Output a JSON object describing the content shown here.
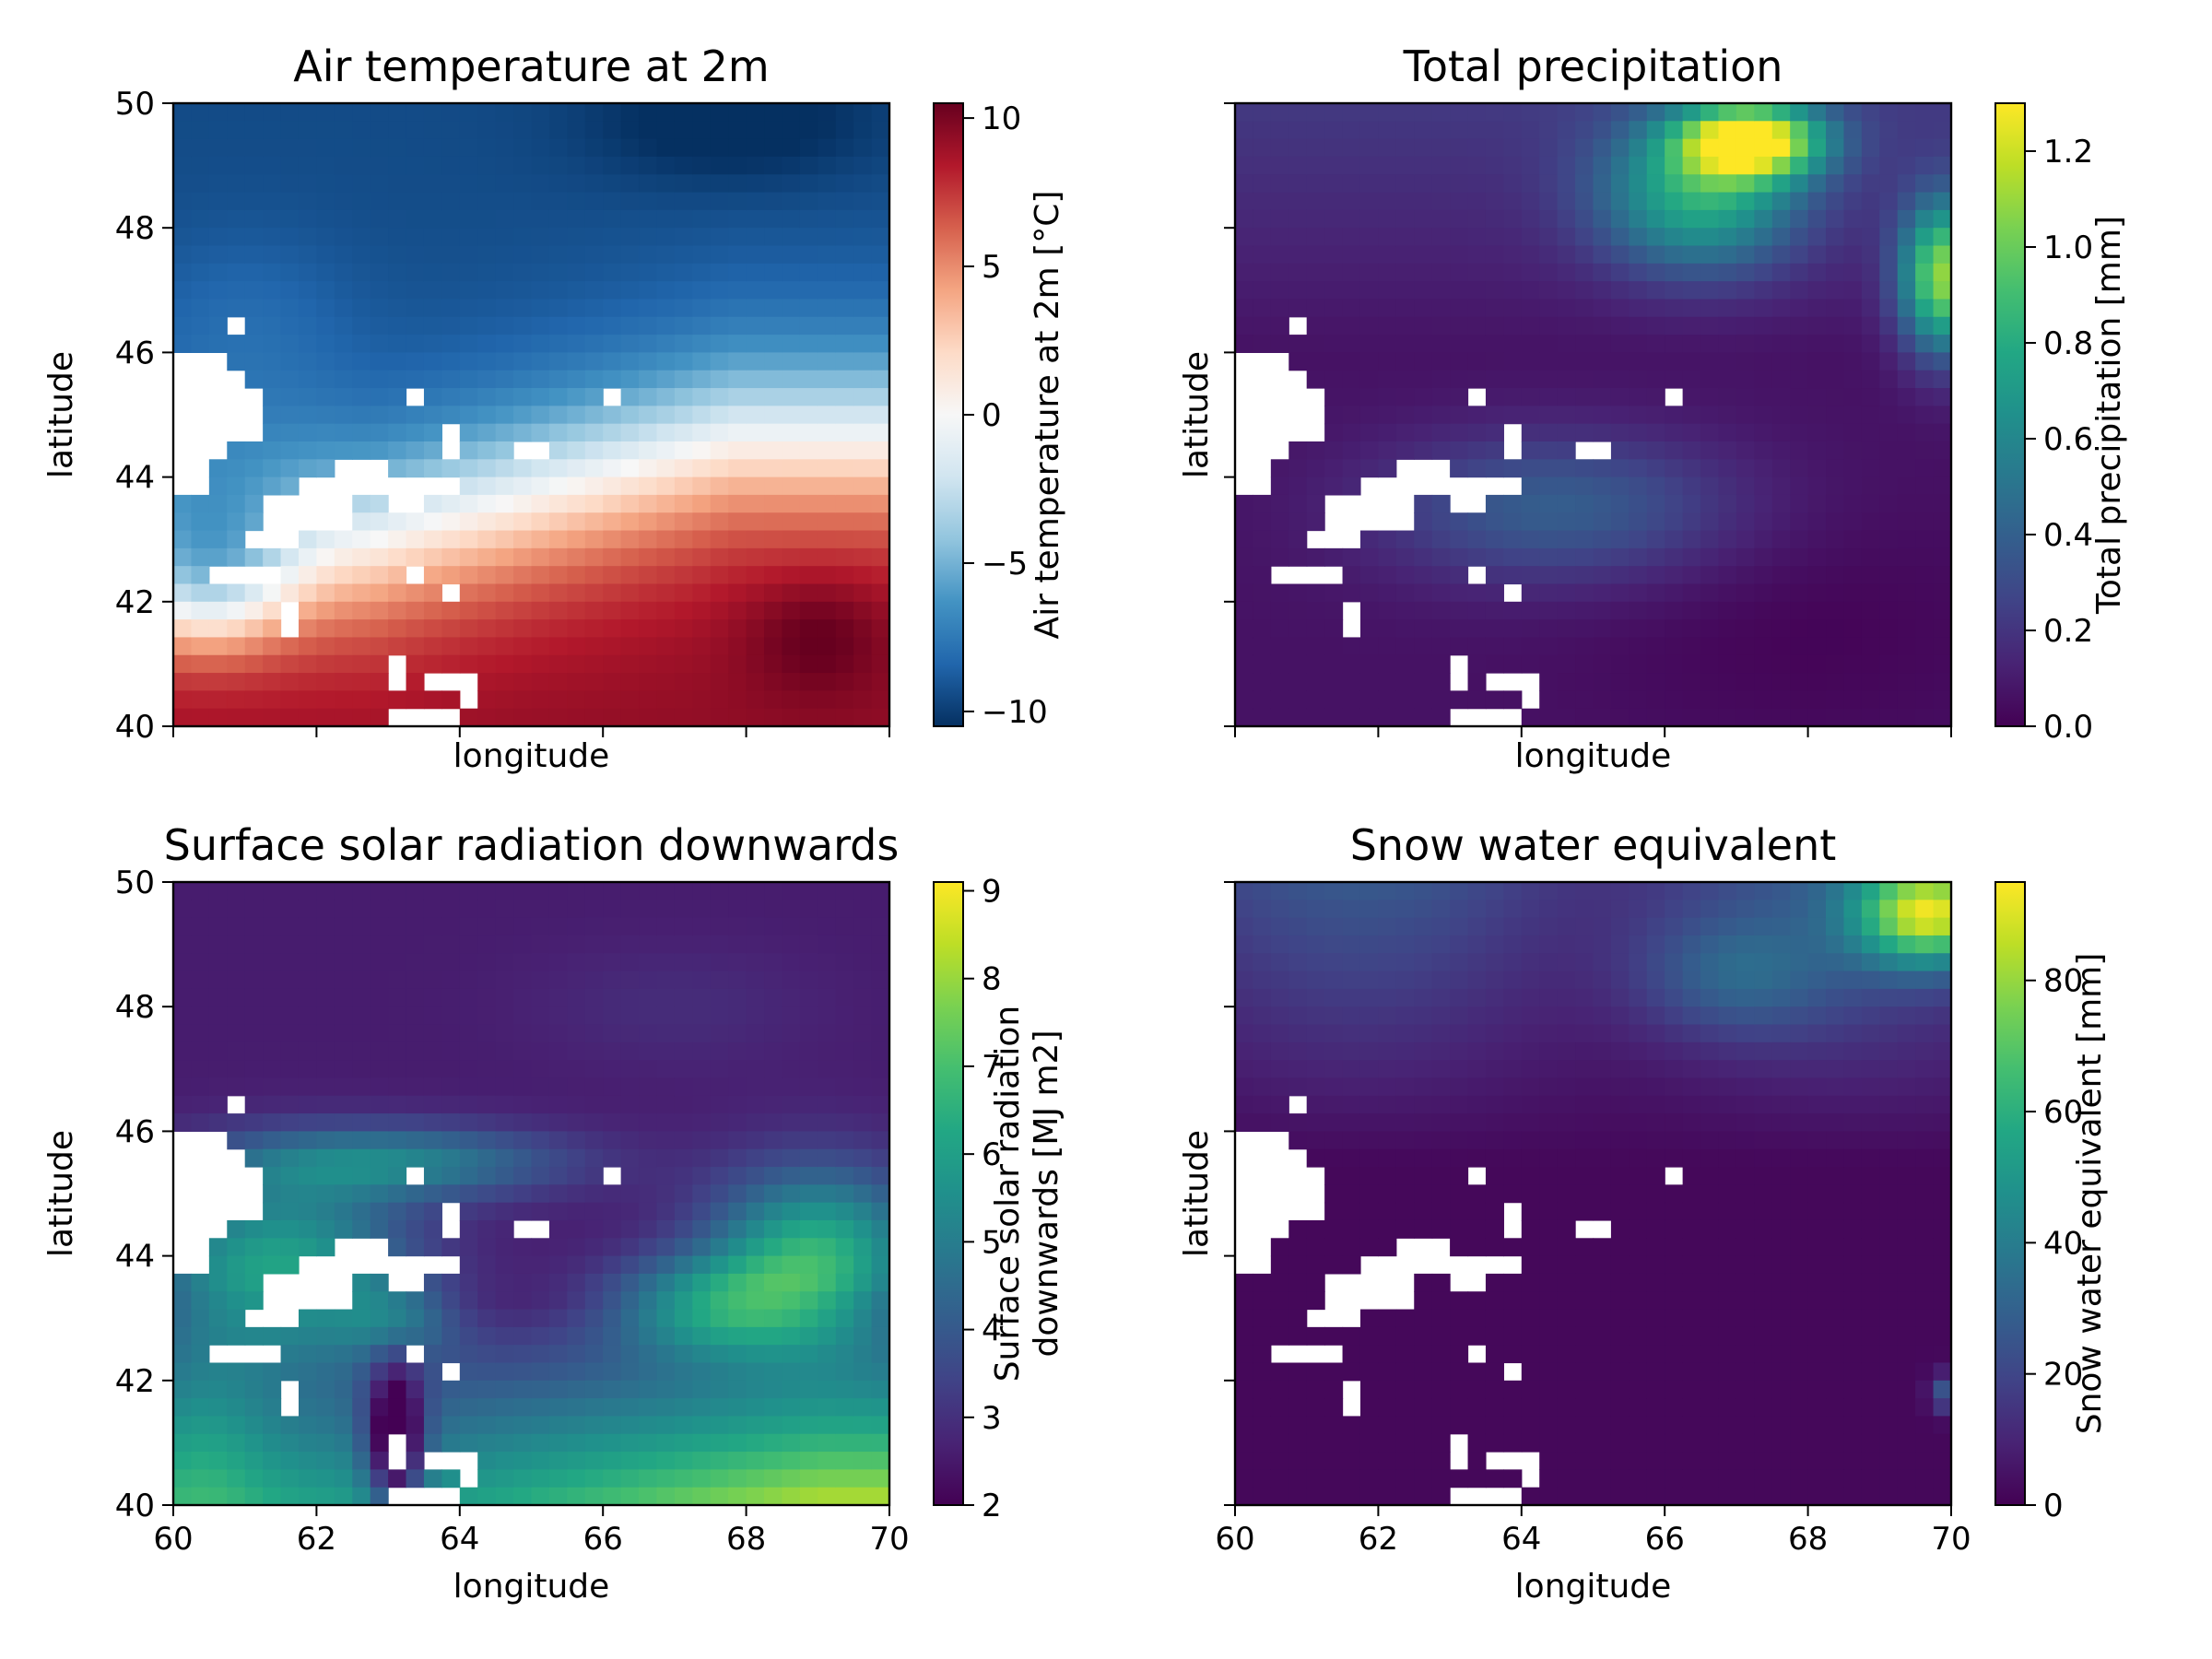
{
  "chart_data": [
    {
      "type": "heatmap",
      "title": "Air temperature at 2m",
      "xlabel": "longitude",
      "ylabel": "latitude",
      "xlim": [
        60,
        70
      ],
      "ylim": [
        40,
        50
      ],
      "xticks": [
        "60",
        "62",
        "64",
        "66",
        "68",
        "70"
      ],
      "xtick_labels_visible": false,
      "yticks": [
        "40",
        "42",
        "44",
        "46",
        "48",
        "50"
      ],
      "ytick_labels_visible": true,
      "grid": false,
      "colorbar": {
        "label": "Air temperature at 2m [°C]",
        "cmap": "RdBu_r",
        "range": [
          -10.5,
          10.5
        ],
        "ticks": [
          -10,
          -5,
          0,
          5,
          10
        ],
        "tick_labels": [
          "−10",
          "−5",
          "0",
          "5",
          "10"
        ]
      }
    },
    {
      "type": "heatmap",
      "title": "Total precipitation",
      "xlabel": "longitude",
      "ylabel": "latitude",
      "xlim": [
        60,
        70
      ],
      "ylim": [
        40,
        50
      ],
      "xticks": [
        "60",
        "62",
        "64",
        "66",
        "68",
        "70"
      ],
      "xtick_labels_visible": false,
      "yticks": [
        "40",
        "42",
        "44",
        "46",
        "48",
        "50"
      ],
      "ytick_labels_visible": false,
      "grid": false,
      "colorbar": {
        "label": "Total precipitation [mm]",
        "cmap": "viridis",
        "range": [
          0,
          1.3
        ],
        "ticks": [
          0,
          0.2,
          0.4,
          0.6,
          0.8,
          1.0,
          1.2
        ],
        "tick_labels": [
          "0.0",
          "0.2",
          "0.4",
          "0.6",
          "0.8",
          "1.0",
          "1.2"
        ]
      }
    },
    {
      "type": "heatmap",
      "title": "Surface solar radiation downwards",
      "xlabel": "longitude",
      "ylabel": "latitude",
      "xlim": [
        60,
        70
      ],
      "ylim": [
        40,
        50
      ],
      "xticks": [
        "60",
        "62",
        "64",
        "66",
        "68",
        "70"
      ],
      "xtick_labels_visible": true,
      "yticks": [
        "40",
        "42",
        "44",
        "46",
        "48",
        "50"
      ],
      "ytick_labels_visible": true,
      "grid": false,
      "colorbar": {
        "label_lines": [
          "Surface solar radiation",
          "downwards [MJ m2]"
        ],
        "cmap": "viridis",
        "range": [
          2,
          9.1
        ],
        "ticks": [
          2,
          3,
          4,
          5,
          6,
          7,
          8,
          9
        ],
        "tick_labels": [
          "2",
          "3",
          "4",
          "5",
          "6",
          "7",
          "8",
          "9"
        ]
      }
    },
    {
      "type": "heatmap",
      "title": "Snow water equivalent",
      "xlabel": "longitude",
      "ylabel": "latitude",
      "xlim": [
        60,
        70
      ],
      "ylim": [
        40,
        50
      ],
      "xticks": [
        "60",
        "62",
        "64",
        "66",
        "68",
        "70"
      ],
      "xtick_labels_visible": true,
      "yticks": [
        "40",
        "42",
        "44",
        "46",
        "48",
        "50"
      ],
      "ytick_labels_visible": false,
      "grid": false,
      "colorbar": {
        "label": "Snow water equivalent [mm]",
        "cmap": "viridis",
        "range": [
          0,
          95
        ],
        "ticks": [
          0,
          20,
          40,
          60,
          80
        ],
        "tick_labels": [
          "0",
          "20",
          "40",
          "60",
          "80"
        ]
      }
    }
  ]
}
